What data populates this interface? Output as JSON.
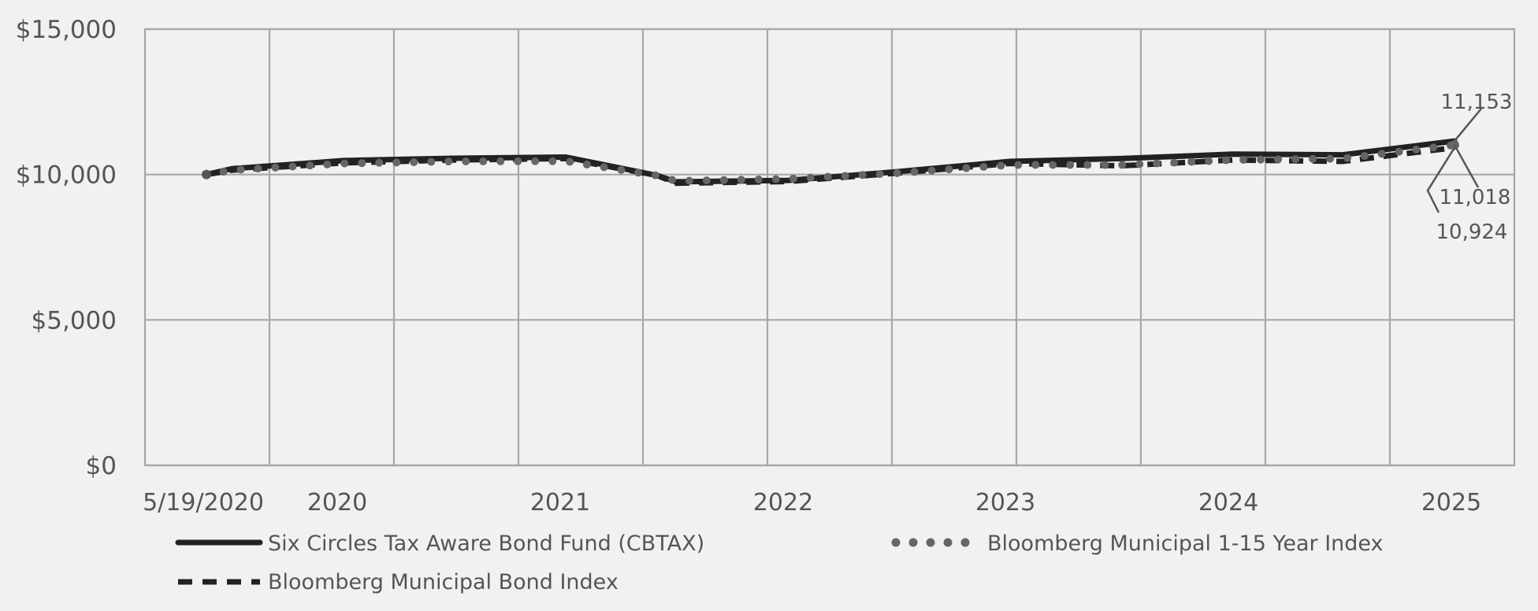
{
  "chart_data": {
    "type": "line",
    "title": "",
    "xlabel": "",
    "ylabel": "",
    "x_tick_labels": [
      "5/19/2020",
      "2020",
      "2021",
      "2022",
      "2023",
      "2024",
      "2025"
    ],
    "y_tick_labels": [
      "$0",
      "$5,000",
      "$10,000",
      "$15,000"
    ],
    "y_ticks": [
      0,
      5000,
      10000,
      15000
    ],
    "ylim": [
      0,
      15000
    ],
    "grid": true,
    "legend_position": "bottom",
    "end_labels": [
      "11,153",
      "11,018",
      "10,924"
    ],
    "series": [
      {
        "name": "Six Circles Tax Aware Bond Fund (CBTAX)",
        "style": "solid",
        "color": "#222222",
        "values": [
          [
            "2020-05-19",
            10000
          ],
          [
            "2020-06-30",
            10200
          ],
          [
            "2020-12-31",
            10480
          ],
          [
            "2021-06-30",
            10560
          ],
          [
            "2021-12-31",
            10600
          ],
          [
            "2022-05-31",
            9960
          ],
          [
            "2022-06-30",
            9750
          ],
          [
            "2022-12-31",
            9800
          ],
          [
            "2023-06-30",
            10100
          ],
          [
            "2023-12-31",
            10450
          ],
          [
            "2024-06-30",
            10550
          ],
          [
            "2024-12-31",
            10700
          ],
          [
            "2025-06-30",
            10680
          ],
          [
            "2025-12-31",
            11153
          ]
        ]
      },
      {
        "name": "Bloomberg Municipal Bond Index",
        "style": "dashed",
        "color": "#222222",
        "values": [
          [
            "2020-05-19",
            10000
          ],
          [
            "2020-06-30",
            10150
          ],
          [
            "2020-12-31",
            10400
          ],
          [
            "2021-06-30",
            10500
          ],
          [
            "2021-12-31",
            10550
          ],
          [
            "2022-05-31",
            9960
          ],
          [
            "2022-06-30",
            9700
          ],
          [
            "2022-12-31",
            9760
          ],
          [
            "2023-06-30",
            10050
          ],
          [
            "2023-12-31",
            10380
          ],
          [
            "2024-06-30",
            10300
          ],
          [
            "2024-12-31",
            10500
          ],
          [
            "2025-06-30",
            10450
          ],
          [
            "2025-12-31",
            10924
          ]
        ]
      },
      {
        "name": "Bloomberg Municipal 1-15 Year Index",
        "style": "dotted",
        "color": "#666666",
        "values": [
          [
            "2020-05-19",
            10000
          ],
          [
            "2020-06-30",
            10150
          ],
          [
            "2020-12-31",
            10380
          ],
          [
            "2021-06-30",
            10450
          ],
          [
            "2021-12-31",
            10460
          ],
          [
            "2022-05-31",
            9960
          ],
          [
            "2022-06-30",
            9780
          ],
          [
            "2022-12-31",
            9850
          ],
          [
            "2023-06-30",
            10050
          ],
          [
            "2023-12-31",
            10330
          ],
          [
            "2024-06-30",
            10330
          ],
          [
            "2024-12-31",
            10500
          ],
          [
            "2025-06-30",
            10550
          ],
          [
            "2025-12-31",
            11018
          ]
        ]
      }
    ]
  }
}
